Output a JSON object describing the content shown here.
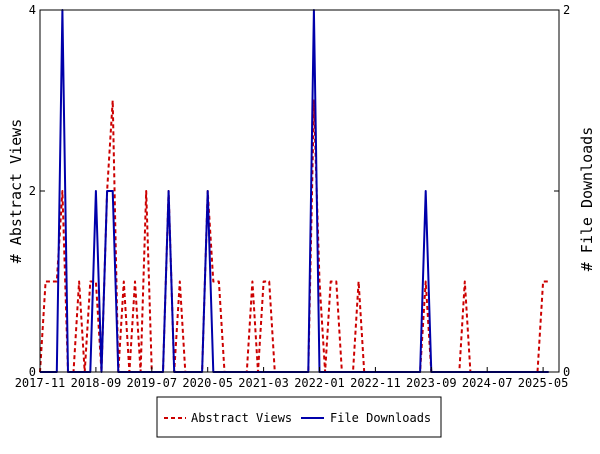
{
  "chart_data": {
    "type": "line",
    "title": "",
    "xlabel": "",
    "ylabel_left": "# Abstract Views",
    "ylabel_right": "# File Downloads",
    "x_ticks": [
      "2017-11",
      "2018-09",
      "2019-07",
      "2020-05",
      "2021-03",
      "2022-01",
      "2022-11",
      "2023-09",
      "2024-07",
      "2025-05"
    ],
    "y_left_ticks": [
      "0",
      "2",
      "4"
    ],
    "y_right_ticks": [
      "0",
      "1",
      "2"
    ],
    "y_left_range": [
      0,
      4
    ],
    "y_right_range": [
      0,
      2
    ],
    "x_range": [
      "2017-11",
      "2025-06"
    ],
    "legend_position": "bottom-center",
    "grid": false,
    "series": [
      {
        "name": "Abstract Views",
        "axis": "left",
        "color": "#cc0000",
        "style": "dashed",
        "points": [
          [
            "2017-11",
            0
          ],
          [
            "2017-12",
            1
          ],
          [
            "2018-01",
            1
          ],
          [
            "2018-02",
            1
          ],
          [
            "2018-03",
            2
          ],
          [
            "2018-04",
            0
          ],
          [
            "2018-05",
            0
          ],
          [
            "2018-06",
            1
          ],
          [
            "2018-07",
            0
          ],
          [
            "2018-08",
            1
          ],
          [
            "2018-09",
            1
          ],
          [
            "2018-10",
            0
          ],
          [
            "2018-11",
            2
          ],
          [
            "2018-12",
            3
          ],
          [
            "2019-01",
            0
          ],
          [
            "2019-02",
            1
          ],
          [
            "2019-03",
            0
          ],
          [
            "2019-04",
            1
          ],
          [
            "2019-05",
            0
          ],
          [
            "2019-06",
            2
          ],
          [
            "2019-07",
            0
          ],
          [
            "2019-08",
            0
          ],
          [
            "2019-09",
            0
          ],
          [
            "2019-10",
            2
          ],
          [
            "2019-11",
            0
          ],
          [
            "2019-12",
            1
          ],
          [
            "2020-01",
            0
          ],
          [
            "2020-02",
            0
          ],
          [
            "2020-03",
            0
          ],
          [
            "2020-04",
            0
          ],
          [
            "2020-05",
            2
          ],
          [
            "2020-06",
            1
          ],
          [
            "2020-07",
            1
          ],
          [
            "2020-08",
            0
          ],
          [
            "2020-09",
            0
          ],
          [
            "2020-10",
            0
          ],
          [
            "2020-11",
            0
          ],
          [
            "2020-12",
            0
          ],
          [
            "2021-01",
            1
          ],
          [
            "2021-02",
            0
          ],
          [
            "2021-03",
            1
          ],
          [
            "2021-04",
            1
          ],
          [
            "2021-05",
            0
          ],
          [
            "2021-06",
            0
          ],
          [
            "2021-07",
            0
          ],
          [
            "2021-08",
            0
          ],
          [
            "2021-09",
            0
          ],
          [
            "2021-10",
            0
          ],
          [
            "2021-11",
            0
          ],
          [
            "2021-12",
            3
          ],
          [
            "2022-01",
            1
          ],
          [
            "2022-02",
            0
          ],
          [
            "2022-03",
            1
          ],
          [
            "2022-04",
            1
          ],
          [
            "2022-05",
            0
          ],
          [
            "2022-06",
            0
          ],
          [
            "2022-07",
            0
          ],
          [
            "2022-08",
            1
          ],
          [
            "2022-09",
            0
          ],
          [
            "2022-10",
            0
          ],
          [
            "2022-11",
            0
          ],
          [
            "2022-12",
            0
          ],
          [
            "2023-01",
            0
          ],
          [
            "2023-02",
            0
          ],
          [
            "2023-03",
            0
          ],
          [
            "2023-04",
            0
          ],
          [
            "2023-05",
            0
          ],
          [
            "2023-06",
            0
          ],
          [
            "2023-07",
            0
          ],
          [
            "2023-08",
            1
          ],
          [
            "2023-09",
            0
          ],
          [
            "2023-10",
            0
          ],
          [
            "2023-11",
            0
          ],
          [
            "2023-12",
            0
          ],
          [
            "2024-01",
            0
          ],
          [
            "2024-02",
            0
          ],
          [
            "2024-03",
            1
          ],
          [
            "2024-04",
            0
          ],
          [
            "2024-05",
            0
          ],
          [
            "2024-06",
            0
          ],
          [
            "2024-07",
            0
          ],
          [
            "2024-08",
            0
          ],
          [
            "2024-09",
            0
          ],
          [
            "2024-10",
            0
          ],
          [
            "2024-11",
            0
          ],
          [
            "2024-12",
            0
          ],
          [
            "2025-01",
            0
          ],
          [
            "2025-02",
            0
          ],
          [
            "2025-03",
            0
          ],
          [
            "2025-04",
            0
          ],
          [
            "2025-05",
            1
          ],
          [
            "2025-06",
            1
          ]
        ]
      },
      {
        "name": "File Downloads",
        "axis": "right",
        "color": "#0000aa",
        "style": "solid",
        "points": [
          [
            "2017-11",
            0
          ],
          [
            "2017-12",
            0
          ],
          [
            "2018-01",
            0
          ],
          [
            "2018-02",
            0
          ],
          [
            "2018-03",
            2
          ],
          [
            "2018-04",
            0
          ],
          [
            "2018-05",
            0
          ],
          [
            "2018-06",
            0
          ],
          [
            "2018-07",
            0
          ],
          [
            "2018-08",
            0
          ],
          [
            "2018-09",
            1
          ],
          [
            "2018-10",
            0
          ],
          [
            "2018-11",
            1
          ],
          [
            "2018-12",
            1
          ],
          [
            "2019-01",
            0
          ],
          [
            "2019-02",
            0
          ],
          [
            "2019-03",
            0
          ],
          [
            "2019-04",
            0
          ],
          [
            "2019-05",
            0
          ],
          [
            "2019-06",
            0
          ],
          [
            "2019-07",
            0
          ],
          [
            "2019-08",
            0
          ],
          [
            "2019-09",
            0
          ],
          [
            "2019-10",
            1
          ],
          [
            "2019-11",
            0
          ],
          [
            "2019-12",
            0
          ],
          [
            "2020-01",
            0
          ],
          [
            "2020-02",
            0
          ],
          [
            "2020-03",
            0
          ],
          [
            "2020-04",
            0
          ],
          [
            "2020-05",
            1
          ],
          [
            "2020-06",
            0
          ],
          [
            "2020-07",
            0
          ],
          [
            "2020-08",
            0
          ],
          [
            "2020-09",
            0
          ],
          [
            "2020-10",
            0
          ],
          [
            "2020-11",
            0
          ],
          [
            "2020-12",
            0
          ],
          [
            "2021-01",
            0
          ],
          [
            "2021-02",
            0
          ],
          [
            "2021-03",
            0
          ],
          [
            "2021-04",
            0
          ],
          [
            "2021-05",
            0
          ],
          [
            "2021-06",
            0
          ],
          [
            "2021-07",
            0
          ],
          [
            "2021-08",
            0
          ],
          [
            "2021-09",
            0
          ],
          [
            "2021-10",
            0
          ],
          [
            "2021-11",
            0
          ],
          [
            "2021-12",
            2
          ],
          [
            "2022-01",
            0
          ],
          [
            "2022-02",
            0
          ],
          [
            "2022-03",
            0
          ],
          [
            "2022-04",
            0
          ],
          [
            "2022-05",
            0
          ],
          [
            "2022-06",
            0
          ],
          [
            "2022-07",
            0
          ],
          [
            "2022-08",
            0
          ],
          [
            "2022-09",
            0
          ],
          [
            "2022-10",
            0
          ],
          [
            "2022-11",
            0
          ],
          [
            "2022-12",
            0
          ],
          [
            "2023-01",
            0
          ],
          [
            "2023-02",
            0
          ],
          [
            "2023-03",
            0
          ],
          [
            "2023-04",
            0
          ],
          [
            "2023-05",
            0
          ],
          [
            "2023-06",
            0
          ],
          [
            "2023-07",
            0
          ],
          [
            "2023-08",
            1
          ],
          [
            "2023-09",
            0
          ],
          [
            "2023-10",
            0
          ],
          [
            "2023-11",
            0
          ],
          [
            "2023-12",
            0
          ],
          [
            "2024-01",
            0
          ],
          [
            "2024-02",
            0
          ],
          [
            "2024-03",
            0
          ],
          [
            "2024-04",
            0
          ],
          [
            "2024-05",
            0
          ],
          [
            "2024-06",
            0
          ],
          [
            "2024-07",
            0
          ],
          [
            "2024-08",
            0
          ],
          [
            "2024-09",
            0
          ],
          [
            "2024-10",
            0
          ],
          [
            "2024-11",
            0
          ],
          [
            "2024-12",
            0
          ],
          [
            "2025-01",
            0
          ],
          [
            "2025-02",
            0
          ],
          [
            "2025-03",
            0
          ],
          [
            "2025-04",
            0
          ],
          [
            "2025-05",
            0
          ],
          [
            "2025-06",
            0
          ]
        ]
      }
    ]
  }
}
